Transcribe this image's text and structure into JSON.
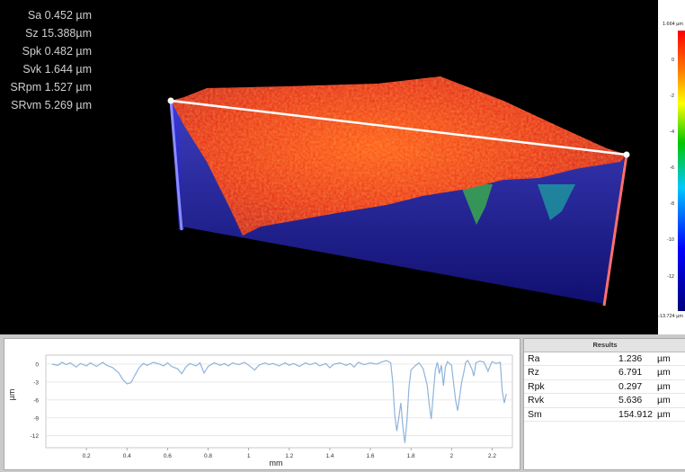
{
  "surface_parameters": [
    {
      "label": "Sa 0.452  µm"
    },
    {
      "label": "Sz 15.388µm"
    },
    {
      "label": "Spk 0.482  µm"
    },
    {
      "label": "Svk 1.644  µm"
    },
    {
      "label": "SRpm 1.527  µm"
    },
    {
      "label": "SRvm 5.269  µm"
    }
  ],
  "colorbar": {
    "max_label": "1.664 µm",
    "min_label": "-13.724 µm",
    "ticks": [
      "0",
      "-2",
      "-4",
      "-6",
      "-8",
      "-10",
      "-12"
    ]
  },
  "results": {
    "header": "Results",
    "rows": [
      {
        "name": "Ra",
        "value": "1.236",
        "unit": "µm"
      },
      {
        "name": "Rz",
        "value": "6.791",
        "unit": "µm"
      },
      {
        "name": "Rpk",
        "value": "0.297",
        "unit": "µm"
      },
      {
        "name": "Rvk",
        "value": "5.636",
        "unit": "µm"
      },
      {
        "name": "Sm",
        "value": "154.912",
        "unit": "µm"
      }
    ]
  },
  "profile_chart": {
    "xlabel": "mm",
    "ylabel": "µm",
    "x_ticks": [
      "0.2",
      "0.4",
      "0.6",
      "0.8",
      "1",
      "1.2",
      "1.4",
      "1.6",
      "1.8",
      "2",
      "2.2"
    ],
    "y_ticks": [
      "0",
      "-3",
      "-6",
      "-9",
      "-12"
    ]
  },
  "chart_data": {
    "type": "line",
    "title": "",
    "xlabel": "mm",
    "ylabel": "µm",
    "xlim": [
      0,
      2.3
    ],
    "ylim": [
      -14,
      1.5
    ],
    "grid": true,
    "series": [
      {
        "values": [
          [
            0.03,
            0.0
          ],
          [
            0.06,
            -0.2
          ],
          [
            0.08,
            0.3
          ],
          [
            0.1,
            -0.1
          ],
          [
            0.12,
            0.2
          ],
          [
            0.15,
            -0.5
          ],
          [
            0.17,
            0.1
          ],
          [
            0.2,
            -0.3
          ],
          [
            0.22,
            0.2
          ],
          [
            0.25,
            -0.4
          ],
          [
            0.28,
            0.3
          ],
          [
            0.3,
            -0.2
          ],
          [
            0.33,
            -0.6
          ],
          [
            0.36,
            -1.5
          ],
          [
            0.38,
            -2.6
          ],
          [
            0.4,
            -3.3
          ],
          [
            0.42,
            -3.1
          ],
          [
            0.44,
            -1.8
          ],
          [
            0.46,
            -0.6
          ],
          [
            0.48,
            0.1
          ],
          [
            0.5,
            -0.2
          ],
          [
            0.53,
            0.3
          ],
          [
            0.56,
            0.0
          ],
          [
            0.58,
            -0.3
          ],
          [
            0.6,
            0.2
          ],
          [
            0.62,
            -0.4
          ],
          [
            0.65,
            -0.8
          ],
          [
            0.67,
            -1.6
          ],
          [
            0.69,
            -0.5
          ],
          [
            0.71,
            0.1
          ],
          [
            0.74,
            -0.3
          ],
          [
            0.76,
            0.2
          ],
          [
            0.78,
            -1.5
          ],
          [
            0.8,
            -0.4
          ],
          [
            0.83,
            0.2
          ],
          [
            0.86,
            -0.2
          ],
          [
            0.88,
            0.1
          ],
          [
            0.9,
            -0.3
          ],
          [
            0.92,
            0.2
          ],
          [
            0.95,
            -0.1
          ],
          [
            0.98,
            0.3
          ],
          [
            1.0,
            -0.2
          ],
          [
            1.03,
            -1.0
          ],
          [
            1.05,
            -0.2
          ],
          [
            1.08,
            0.2
          ],
          [
            1.1,
            -0.1
          ],
          [
            1.12,
            0.1
          ],
          [
            1.15,
            -0.3
          ],
          [
            1.18,
            0.2
          ],
          [
            1.2,
            -0.2
          ],
          [
            1.22,
            0.1
          ],
          [
            1.25,
            -0.4
          ],
          [
            1.28,
            0.2
          ],
          [
            1.3,
            -0.1
          ],
          [
            1.33,
            0.2
          ],
          [
            1.35,
            -0.3
          ],
          [
            1.38,
            0.1
          ],
          [
            1.4,
            -0.6
          ],
          [
            1.42,
            0.0
          ],
          [
            1.45,
            0.2
          ],
          [
            1.48,
            -0.2
          ],
          [
            1.5,
            0.1
          ],
          [
            1.52,
            -0.5
          ],
          [
            1.54,
            0.3
          ],
          [
            1.57,
            -0.1
          ],
          [
            1.6,
            0.2
          ],
          [
            1.63,
            0.0
          ],
          [
            1.66,
            0.4
          ],
          [
            1.68,
            0.6
          ],
          [
            1.7,
            0.2
          ],
          [
            1.71,
            -3.0
          ],
          [
            1.72,
            -8.5
          ],
          [
            1.73,
            -11.2
          ],
          [
            1.74,
            -9.0
          ],
          [
            1.75,
            -6.5
          ],
          [
            1.76,
            -10.4
          ],
          [
            1.77,
            -13.2
          ],
          [
            1.78,
            -9.5
          ],
          [
            1.79,
            -4.0
          ],
          [
            1.8,
            -1.0
          ],
          [
            1.82,
            -0.3
          ],
          [
            1.84,
            0.2
          ],
          [
            1.86,
            -0.8
          ],
          [
            1.88,
            -3.5
          ],
          [
            1.89,
            -6.8
          ],
          [
            1.9,
            -9.2
          ],
          [
            1.91,
            -5.0
          ],
          [
            1.92,
            -1.0
          ],
          [
            1.93,
            0.3
          ],
          [
            1.94,
            -1.6
          ],
          [
            1.95,
            -0.2
          ],
          [
            1.96,
            -3.6
          ],
          [
            1.97,
            -0.5
          ],
          [
            1.98,
            0.4
          ],
          [
            2.0,
            -0.2
          ],
          [
            2.01,
            -3.2
          ],
          [
            2.02,
            -6.0
          ],
          [
            2.03,
            -7.8
          ],
          [
            2.04,
            -5.5
          ],
          [
            2.05,
            -3.0
          ],
          [
            2.06,
            -1.5
          ],
          [
            2.07,
            0.3
          ],
          [
            2.08,
            0.6
          ],
          [
            2.1,
            -0.8
          ],
          [
            2.11,
            -2.0
          ],
          [
            2.12,
            0.2
          ],
          [
            2.14,
            0.5
          ],
          [
            2.16,
            0.3
          ],
          [
            2.18,
            -1.2
          ],
          [
            2.19,
            -0.3
          ],
          [
            2.2,
            0.4
          ],
          [
            2.22,
            0.1
          ],
          [
            2.24,
            0.3
          ],
          [
            2.25,
            -4.5
          ],
          [
            2.26,
            -6.5
          ],
          [
            2.27,
            -5.0
          ]
        ]
      }
    ]
  }
}
